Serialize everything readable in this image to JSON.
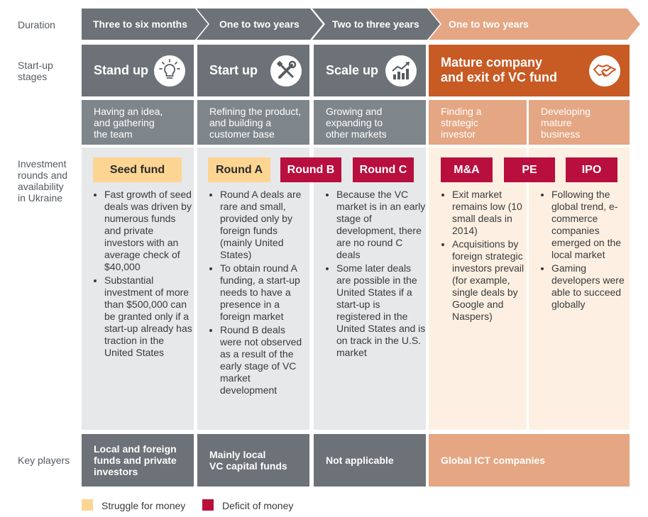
{
  "row_labels": {
    "duration": "Duration",
    "stages": "Start-up\nstages",
    "investment": "Investment\nrounds and\navailability\nin Ukraine",
    "key_players": "Key players"
  },
  "durations": [
    "Three to six months",
    "One to two years",
    "Two to three years",
    "One to two years"
  ],
  "stages": [
    {
      "title": "Stand up",
      "icon": "lightbulb-icon"
    },
    {
      "title": "Start up",
      "icon": "tools-icon"
    },
    {
      "title": "Scale up",
      "icon": "growth-chart-icon"
    },
    {
      "title": "Mature company\nand exit of VC fund",
      "icon": "handshake-icon"
    }
  ],
  "descriptions": [
    "Having an idea,\nand gathering\nthe team",
    "Refining the product,\nand building a\ncustomer base",
    "Growing and\nexpanding to\nother markets",
    "Finding a\nstrategic\ninvestor",
    "Developing\nmature\nbusiness"
  ],
  "rounds": {
    "seed": "Seed fund",
    "round_a": "Round A",
    "round_b": "Round B",
    "round_c": "Round C",
    "ma": "M&A",
    "pe": "PE",
    "ipo": "IPO"
  },
  "bullets": {
    "col1": [
      "Fast growth of seed deals was driven by numerous funds and private investors with an average check of $40,000",
      "Substantial investment of more than $500,000 can be granted only if a start-up already has traction in the United States"
    ],
    "col2": [
      "Round A deals are rare and small, provided only by foreign funds (mainly United States)",
      "To obtain round A funding, a start-up needs to have a presence in a foreign market",
      "Round B deals were not observed as a result of the early stage of VC market development"
    ],
    "col3": [
      "Because the VC market is in an early stage of development, there are no round C deals",
      "Some later deals are possible in the United States if a start-up is registered in the United States and is on track in the U.S. market"
    ],
    "col4a": [
      "Exit market remains low (10 small deals in 2014)",
      "Acquisitions by foreign strategic investors prevail (for example, single deals by Google and Naspers)"
    ],
    "col4b": [
      "Following the global trend, e-commerce companies emerged on the local market",
      "Gaming developers were able to succeed globally"
    ]
  },
  "key_players": [
    "Local and foreign\nfunds and private\ninvestors",
    "Mainly local\nVC capital funds",
    "Not applicable",
    "Global ICT companies"
  ],
  "legend": [
    {
      "label": "Struggle for money",
      "color": "#fdd592"
    },
    {
      "label": "Deficit of money",
      "color": "#b80f3e"
    }
  ],
  "colors": {
    "gray_dark": "#6c7277",
    "gray_mid": "#7f868b",
    "gray_light_col": "#e6e8ea",
    "orange_dark": "#c85a24",
    "orange_light": "#e4a683",
    "orange_pale": "#fdf0e3"
  }
}
